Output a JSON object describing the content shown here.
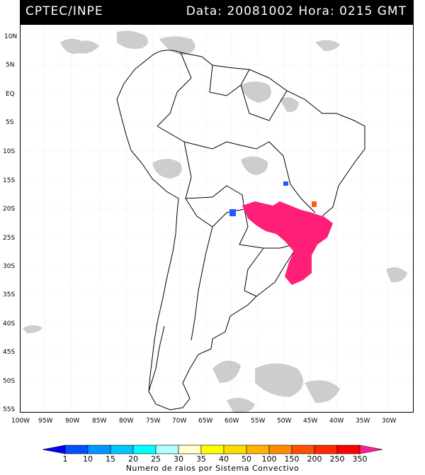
{
  "header": {
    "source": "CPTEC/INPE",
    "datetime": "Data: 20081002 Hora: 0215 GMT"
  },
  "map": {
    "lat_labels": [
      "10N",
      "5N",
      "EQ",
      "5S",
      "10S",
      "15S",
      "20S",
      "25S",
      "30S",
      "35S",
      "40S",
      "45S",
      "50S",
      "55S"
    ],
    "lon_labels": [
      "100W",
      "95W",
      "90W",
      "85W",
      "80W",
      "75W",
      "70W",
      "65W",
      "60W",
      "55W",
      "50W",
      "45W",
      "40W",
      "35W",
      "30W"
    ],
    "colors": {
      "land_outline": "#000000",
      "cloud": "#c8c8c8",
      "grid": "#bfbfbf",
      "lightning_main": "#ff1e78",
      "lightning_blue": "#1e5aff",
      "lightning_orange": "#ff5a14"
    }
  },
  "legend": {
    "values": [
      "1",
      "10",
      "15",
      "20",
      "25",
      "30",
      "35",
      "40",
      "50",
      "100",
      "150",
      "200",
      "250",
      "350"
    ],
    "colors": [
      "#0000ff",
      "#0050ff",
      "#0096ff",
      "#00c8ff",
      "#00ffff",
      "#b4ffff",
      "#ffffc8",
      "#ffff00",
      "#ffdc00",
      "#ffb400",
      "#ff8c00",
      "#ff5000",
      "#ff2800",
      "#ff0000",
      "#ff1e96"
    ],
    "caption": "Numero de raios por Sistema Convectivo"
  }
}
